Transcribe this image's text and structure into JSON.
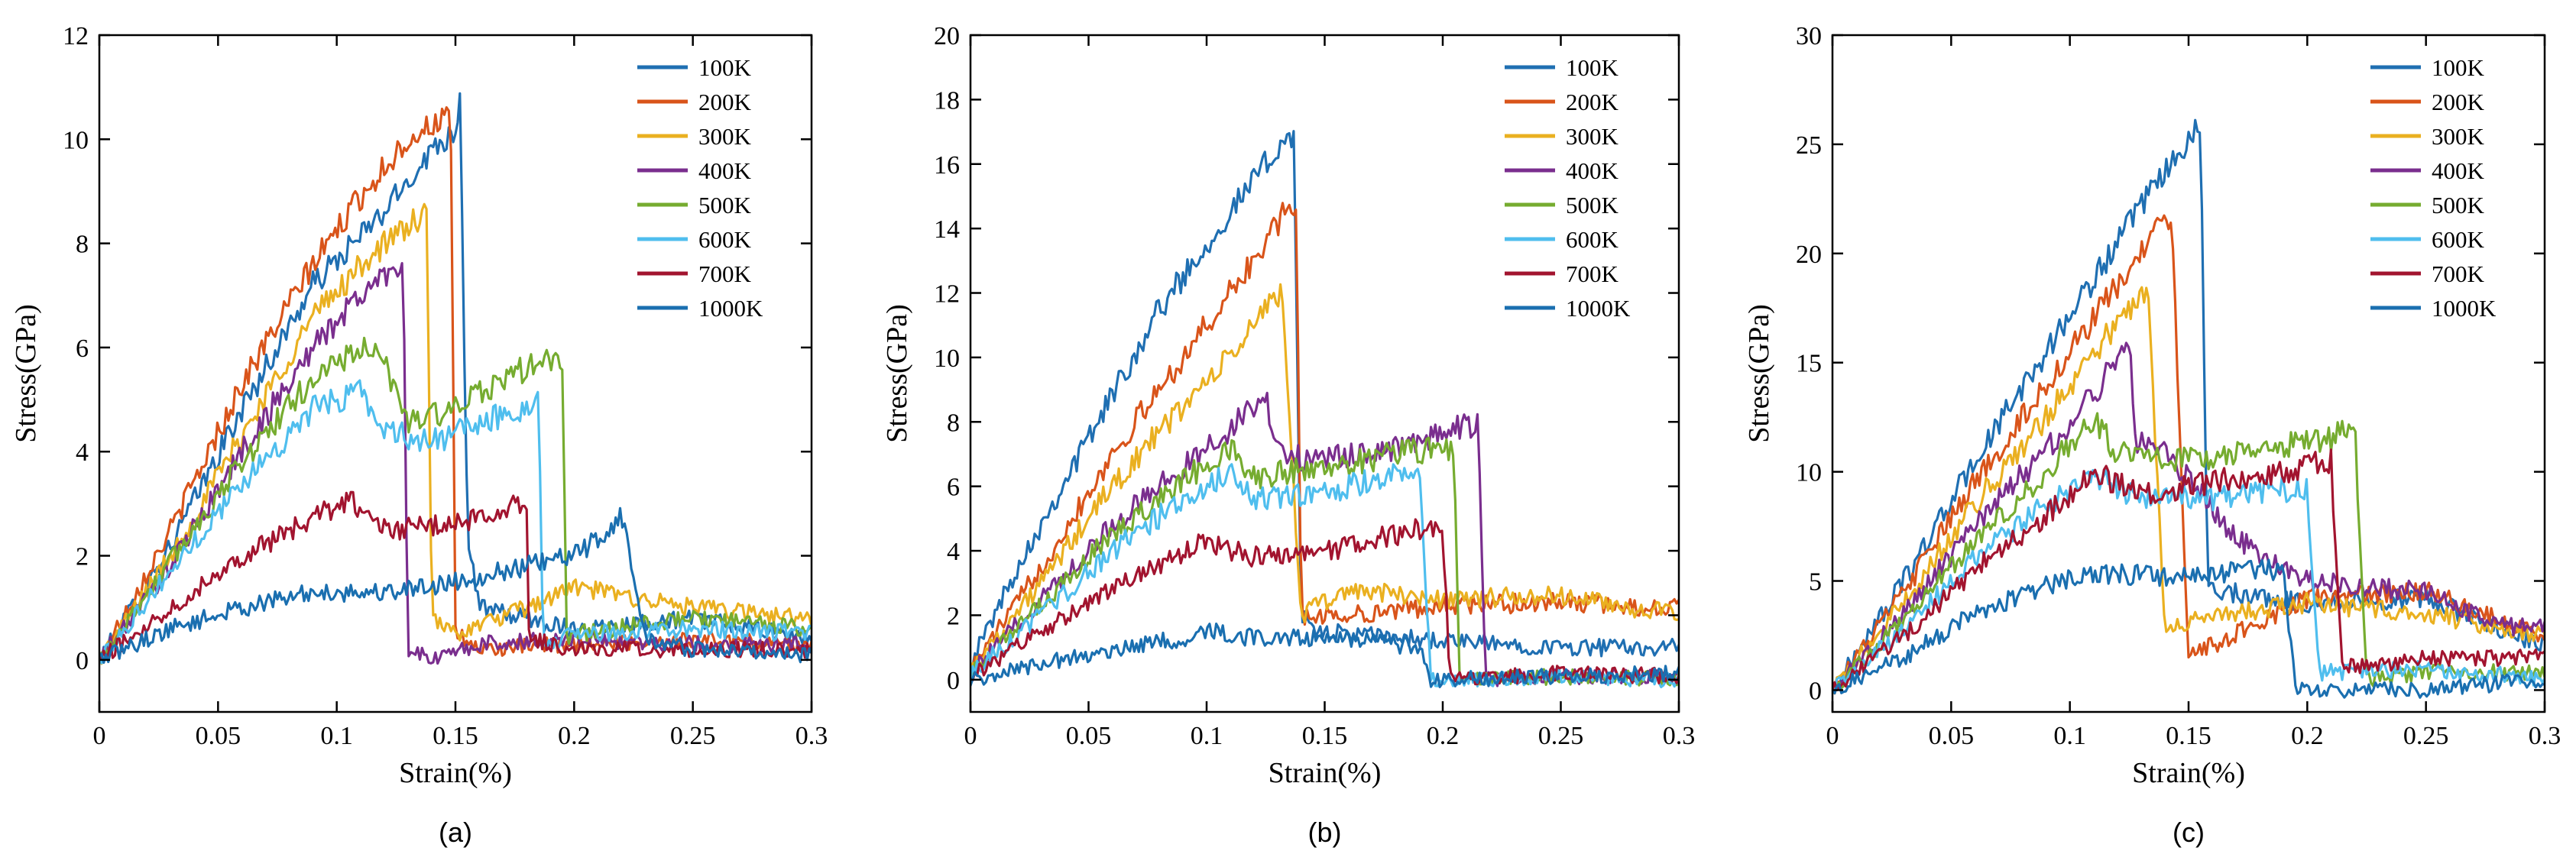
{
  "colors": [
    "#1f6fb2",
    "#d9541a",
    "#eab020",
    "#7a2e8e",
    "#76ac30",
    "#4fbeee",
    "#a2142f",
    "#1a6fb0"
  ],
  "chart_data": [
    {
      "type": "line",
      "caption": "(a)",
      "xlabel": "Strain(%)",
      "ylabel": "Stress(GPa)",
      "xlim": [
        0,
        0.3
      ],
      "ylim": [
        -1,
        12
      ],
      "xticks": [
        0,
        0.05,
        0.1,
        0.15,
        0.2,
        0.25,
        0.3
      ],
      "xtick_labels": [
        "0",
        "0.05",
        "0.1",
        "0.15",
        "0.2",
        "0.25",
        "0.3"
      ],
      "yticks": [
        0,
        2,
        4,
        6,
        8,
        10,
        12
      ],
      "ytick_labels": [
        "0",
        "2",
        "4",
        "6",
        "8",
        "10",
        "12"
      ],
      "grid": false,
      "legend_position": "top-right",
      "series": [
        {
          "name": "100K",
          "x": [
            0,
            0.03,
            0.06,
            0.09,
            0.12,
            0.14,
            0.15,
            0.152,
            0.155,
            0.16,
            0.2,
            0.25,
            0.3
          ],
          "y": [
            0,
            2.2,
            4.8,
            7.2,
            8.6,
            9.8,
            10.2,
            10.8,
            2.5,
            1.0,
            0.6,
            0.8,
            0.4
          ]
        },
        {
          "name": "200K",
          "x": [
            0,
            0.03,
            0.06,
            0.09,
            0.11,
            0.13,
            0.145,
            0.148,
            0.15,
            0.16,
            0.2,
            0.25,
            0.3
          ],
          "y": [
            0,
            2.5,
            5.3,
            7.6,
            8.9,
            10.0,
            10.4,
            10.4,
            0.5,
            0.2,
            0.3,
            0.4,
            0.3
          ]
        },
        {
          "name": "300K",
          "x": [
            0,
            0.03,
            0.06,
            0.09,
            0.115,
            0.135,
            0.138,
            0.14,
            0.15,
            0.18,
            0.2,
            0.25,
            0.3
          ],
          "y": [
            0,
            2.0,
            4.3,
            6.6,
            7.8,
            8.5,
            8.5,
            0.8,
            0.5,
            1.0,
            1.4,
            1.0,
            0.8
          ]
        },
        {
          "name": "400K",
          "x": [
            0,
            0.03,
            0.06,
            0.09,
            0.11,
            0.125,
            0.128,
            0.13,
            0.14,
            0.16,
            0.2,
            0.25,
            0.3
          ],
          "y": [
            0,
            1.8,
            4.0,
            6.0,
            7.0,
            7.6,
            7.6,
            0.2,
            0.0,
            0.3,
            0.4,
            0.3,
            0.3
          ]
        },
        {
          "name": "500K",
          "x": [
            0,
            0.03,
            0.06,
            0.09,
            0.11,
            0.12,
            0.13,
            0.15,
            0.17,
            0.19,
            0.195,
            0.197,
            0.2,
            0.25,
            0.3
          ],
          "y": [
            0,
            1.9,
            3.8,
            5.4,
            6.0,
            5.7,
            4.6,
            4.8,
            5.4,
            5.8,
            5.6,
            0.2,
            0.5,
            0.8,
            0.6
          ]
        },
        {
          "name": "600K",
          "x": [
            0,
            0.03,
            0.06,
            0.09,
            0.11,
            0.12,
            0.14,
            0.16,
            0.18,
            0.185,
            0.187,
            0.2,
            0.25,
            0.3
          ],
          "y": [
            0,
            1.7,
            3.4,
            4.8,
            5.2,
            4.4,
            4.2,
            4.5,
            4.9,
            5.0,
            0.2,
            0.5,
            0.6,
            0.5
          ]
        },
        {
          "name": "700K",
          "x": [
            0,
            0.03,
            0.06,
            0.09,
            0.105,
            0.12,
            0.15,
            0.17,
            0.18,
            0.181,
            0.2,
            0.25,
            0.3
          ],
          "y": [
            0,
            1.0,
            2.0,
            2.7,
            3.1,
            2.5,
            2.6,
            2.9,
            3.1,
            0.4,
            0.2,
            0.2,
            0.2
          ]
        },
        {
          "name": "1000K",
          "x": [
            0,
            0.03,
            0.06,
            0.09,
            0.12,
            0.15,
            0.18,
            0.2,
            0.215,
            0.22,
            0.23,
            0.25,
            0.3
          ],
          "y": [
            0,
            0.6,
            1.0,
            1.3,
            1.3,
            1.5,
            1.8,
            2.0,
            2.5,
            2.8,
            0.4,
            0.2,
            0.1
          ]
        }
      ]
    },
    {
      "type": "line",
      "caption": "(b)",
      "xlabel": "Strain(%)",
      "ylabel": "Stress(GPa)",
      "xlim": [
        0,
        0.3
      ],
      "ylim": [
        -1,
        20
      ],
      "xticks": [
        0,
        0.05,
        0.1,
        0.15,
        0.2,
        0.25,
        0.3
      ],
      "xtick_labels": [
        "0",
        "0.05",
        "0.1",
        "0.15",
        "0.2",
        "0.25",
        "0.3"
      ],
      "yticks": [
        0,
        2,
        4,
        6,
        8,
        10,
        12,
        14,
        16,
        18,
        20
      ],
      "ytick_labels": [
        "0",
        "2",
        "4",
        "6",
        "8",
        "10",
        "12",
        "14",
        "16",
        "18",
        "20"
      ],
      "grid": false,
      "legend_position": "top-right",
      "series": [
        {
          "name": "100K",
          "x": [
            0,
            0.02,
            0.05,
            0.08,
            0.11,
            0.13,
            0.137,
            0.14,
            0.145,
            0.2,
            0.25,
            0.3
          ],
          "y": [
            0.5,
            3.5,
            7.5,
            11.5,
            14.5,
            16.5,
            17.0,
            2.0,
            1.5,
            1.2,
            1.0,
            1.0
          ]
        },
        {
          "name": "200K",
          "x": [
            0,
            0.03,
            0.06,
            0.09,
            0.12,
            0.135,
            0.138,
            0.14,
            0.16,
            0.2,
            0.25,
            0.3
          ],
          "y": [
            0.3,
            3.5,
            7.0,
            10.0,
            13.0,
            14.7,
            14.7,
            2.0,
            2.0,
            2.3,
            2.4,
            2.2
          ]
        },
        {
          "name": "300K",
          "x": [
            0,
            0.03,
            0.06,
            0.09,
            0.11,
            0.13,
            0.132,
            0.14,
            0.16,
            0.2,
            0.25,
            0.3
          ],
          "y": [
            0.3,
            3.0,
            6.0,
            8.5,
            10.0,
            12.0,
            12.0,
            2.0,
            2.8,
            2.5,
            2.6,
            2.0
          ]
        },
        {
          "name": "400K",
          "x": [
            0,
            0.03,
            0.06,
            0.09,
            0.11,
            0.125,
            0.13,
            0.15,
            0.18,
            0.2,
            0.215,
            0.218,
            0.25,
            0.3
          ],
          "y": [
            0.2,
            2.5,
            4.8,
            6.6,
            7.8,
            8.8,
            7.0,
            6.8,
            7.2,
            7.6,
            8.0,
            0.0,
            0.1,
            0.1
          ]
        },
        {
          "name": "500K",
          "x": [
            0,
            0.03,
            0.06,
            0.09,
            0.11,
            0.12,
            0.15,
            0.18,
            0.2,
            0.205,
            0.207,
            0.25,
            0.3
          ],
          "y": [
            0.2,
            2.3,
            4.5,
            6.2,
            7.2,
            6.3,
            6.6,
            7.0,
            7.2,
            7.0,
            0.0,
            0.1,
            0.0
          ]
        },
        {
          "name": "600K",
          "x": [
            0,
            0.03,
            0.06,
            0.09,
            0.11,
            0.12,
            0.15,
            0.18,
            0.19,
            0.195,
            0.25,
            0.3
          ],
          "y": [
            0.2,
            2.0,
            4.0,
            5.6,
            6.4,
            5.6,
            5.8,
            6.4,
            6.6,
            0.0,
            0.1,
            0.0
          ]
        },
        {
          "name": "700K",
          "x": [
            0,
            0.03,
            0.06,
            0.09,
            0.1,
            0.12,
            0.15,
            0.18,
            0.2,
            0.203,
            0.25,
            0.3
          ],
          "y": [
            0.1,
            1.5,
            2.8,
            3.9,
            4.3,
            3.8,
            4.0,
            4.5,
            4.8,
            0.0,
            0.2,
            0.1
          ]
        },
        {
          "name": "1000K",
          "x": [
            0,
            0.03,
            0.06,
            0.09,
            0.1,
            0.12,
            0.15,
            0.18,
            0.19,
            0.195,
            0.25,
            0.3
          ],
          "y": [
            0.0,
            0.5,
            0.9,
            1.3,
            1.5,
            1.3,
            1.3,
            1.1,
            1.0,
            0.0,
            0.1,
            0.2
          ]
        }
      ]
    },
    {
      "type": "line",
      "caption": "(c)",
      "xlabel": "Strain(%)",
      "ylabel": "Stress(GPa)",
      "xlim": [
        0,
        0.3
      ],
      "ylim": [
        -1,
        30
      ],
      "xticks": [
        0,
        0.05,
        0.1,
        0.15,
        0.2,
        0.25,
        0.3
      ],
      "xtick_labels": [
        "0",
        "0.05",
        "0.1",
        "0.15",
        "0.2",
        "0.25",
        "0.3"
      ],
      "yticks": [
        0,
        5,
        10,
        15,
        20,
        25,
        30
      ],
      "ytick_labels": [
        "0",
        "5",
        "10",
        "15",
        "20",
        "25",
        "30"
      ],
      "grid": false,
      "legend_position": "top-right",
      "series": [
        {
          "name": "100K",
          "x": [
            0,
            0.03,
            0.06,
            0.09,
            0.12,
            0.145,
            0.155,
            0.158,
            0.165,
            0.2,
            0.25,
            0.3
          ],
          "y": [
            0,
            5.0,
            10.5,
            15.5,
            20.5,
            24.5,
            25.8,
            5.0,
            4.5,
            4.0,
            4.2,
            2.0
          ]
        },
        {
          "name": "200K",
          "x": [
            0,
            0.03,
            0.06,
            0.09,
            0.12,
            0.14,
            0.143,
            0.15,
            0.2,
            0.25,
            0.3
          ],
          "y": [
            0,
            4.5,
            9.5,
            14.0,
            18.5,
            21.5,
            21.5,
            1.5,
            4.2,
            4.5,
            2.5
          ]
        },
        {
          "name": "300K",
          "x": [
            0,
            0.03,
            0.06,
            0.09,
            0.11,
            0.13,
            0.133,
            0.14,
            0.2,
            0.25,
            0.3
          ],
          "y": [
            0,
            4.0,
            8.5,
            12.5,
            15.5,
            18.0,
            18.0,
            3.0,
            4.0,
            3.5,
            2.5
          ]
        },
        {
          "name": "400K",
          "x": [
            0,
            0.03,
            0.06,
            0.09,
            0.11,
            0.125,
            0.128,
            0.14,
            0.17,
            0.2,
            0.25,
            0.28,
            0.3
          ],
          "y": [
            0,
            3.5,
            7.5,
            11.0,
            13.5,
            16.0,
            11.5,
            11.0,
            7.0,
            5.0,
            4.5,
            3.0,
            2.8
          ]
        },
        {
          "name": "500K",
          "x": [
            0,
            0.03,
            0.06,
            0.09,
            0.11,
            0.12,
            0.15,
            0.18,
            0.21,
            0.22,
            0.225,
            0.25,
            0.3
          ],
          "y": [
            0,
            3.2,
            6.8,
            10.0,
            12.5,
            10.8,
            10.5,
            11.0,
            11.5,
            12.2,
            0.5,
            0.8,
            0.8
          ]
        },
        {
          "name": "600K",
          "x": [
            0,
            0.03,
            0.06,
            0.09,
            0.11,
            0.13,
            0.16,
            0.19,
            0.2,
            0.205,
            0.25,
            0.3
          ],
          "y": [
            0,
            2.8,
            6.0,
            8.5,
            9.8,
            8.8,
            8.8,
            9.2,
            9.2,
            0.8,
            1.0,
            0.5
          ]
        },
        {
          "name": "700K",
          "x": [
            0,
            0.03,
            0.06,
            0.09,
            0.11,
            0.13,
            0.16,
            0.19,
            0.21,
            0.215,
            0.25,
            0.3
          ],
          "y": [
            0,
            2.5,
            5.5,
            8.0,
            10.0,
            9.0,
            9.5,
            10.0,
            10.5,
            1.0,
            1.5,
            1.5
          ]
        },
        {
          "name": "1000K",
          "x": [
            0,
            0.03,
            0.06,
            0.09,
            0.11,
            0.15,
            0.18,
            0.19,
            0.195,
            0.25,
            0.3
          ],
          "y": [
            0,
            1.5,
            3.5,
            4.8,
            5.3,
            5.2,
            5.5,
            5.5,
            0.0,
            0.0,
            0.5
          ]
        }
      ]
    }
  ]
}
